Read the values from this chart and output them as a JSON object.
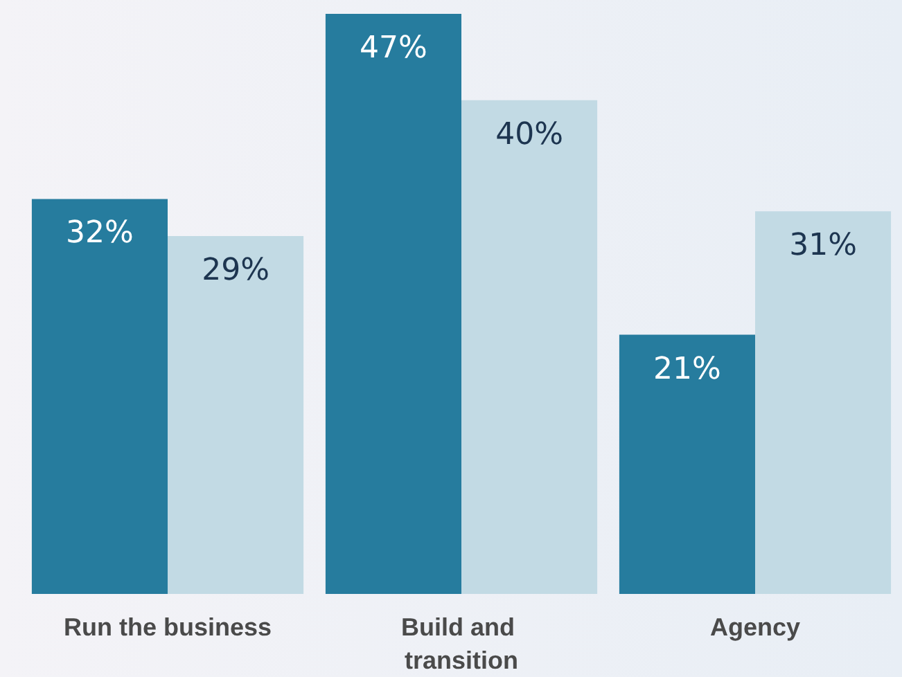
{
  "chart_data": {
    "type": "bar",
    "categories": [
      "Run the business",
      "Build and transition",
      "Agency"
    ],
    "series": [
      {
        "color": "#267c9e",
        "values": [
          32,
          47,
          21
        ],
        "value_labels": [
          "32%",
          "47%",
          "21%"
        ]
      },
      {
        "color": "#c2dae4",
        "values": [
          29,
          40,
          31
        ],
        "value_labels": [
          "29%",
          "40%",
          "31%"
        ]
      }
    ]
  }
}
